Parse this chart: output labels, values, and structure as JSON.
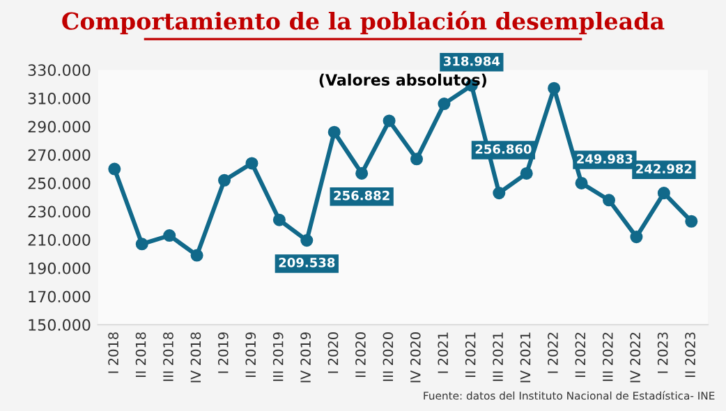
{
  "chart_data": {
    "type": "line",
    "title": "Comportamiento de la población desempleada",
    "subtitle": "(Valores absolutos)",
    "categories": [
      "I 2018",
      "II 2018",
      "III 2018",
      "IV 2018",
      "I 2019",
      "II 2019",
      "III 2019",
      "IV 2019",
      "I 2020",
      "II 2020",
      "III 2020",
      "IV 2020",
      "I 2021",
      "II 2021",
      "III 2021",
      "IV 2021",
      "I 2022",
      "II 2022",
      "III 2022",
      "IV 2022",
      "I 2023",
      "II 2023"
    ],
    "series": [
      {
        "color": "#11698a",
        "values": [
          260000,
          207000,
          213000,
          199000,
          252000,
          264000,
          224000,
          209538,
          286000,
          256882,
          294000,
          267000,
          306000,
          318984,
          243000,
          256860,
          317000,
          249983,
          238000,
          212000,
          242982,
          223000
        ],
        "value_labels": [
          null,
          null,
          null,
          null,
          null,
          null,
          null,
          "209.538",
          null,
          "256.882",
          null,
          null,
          null,
          "318.984",
          null,
          "256.860",
          null,
          "249.983",
          null,
          null,
          "242.982",
          null
        ]
      }
    ],
    "marker": "circle",
    "line_style": "solid",
    "ylim": [
      150000,
      330000
    ],
    "yticks": [
      {
        "value": 150000,
        "label": "150.000"
      },
      {
        "value": 170000,
        "label": "170.000"
      },
      {
        "value": 190000,
        "label": "190.000"
      },
      {
        "value": 210000,
        "label": "210.000"
      },
      {
        "value": 230000,
        "label": "230.000"
      },
      {
        "value": 250000,
        "label": "250.000"
      },
      {
        "value": 270000,
        "label": "270.000"
      },
      {
        "value": 290000,
        "label": "290.000"
      },
      {
        "value": 310000,
        "label": "310.000"
      },
      {
        "value": 330000,
        "label": "330.000"
      }
    ],
    "annotations": [
      "Fuente: datos del Instituto Nacional de Estadística- INE"
    ]
  }
}
